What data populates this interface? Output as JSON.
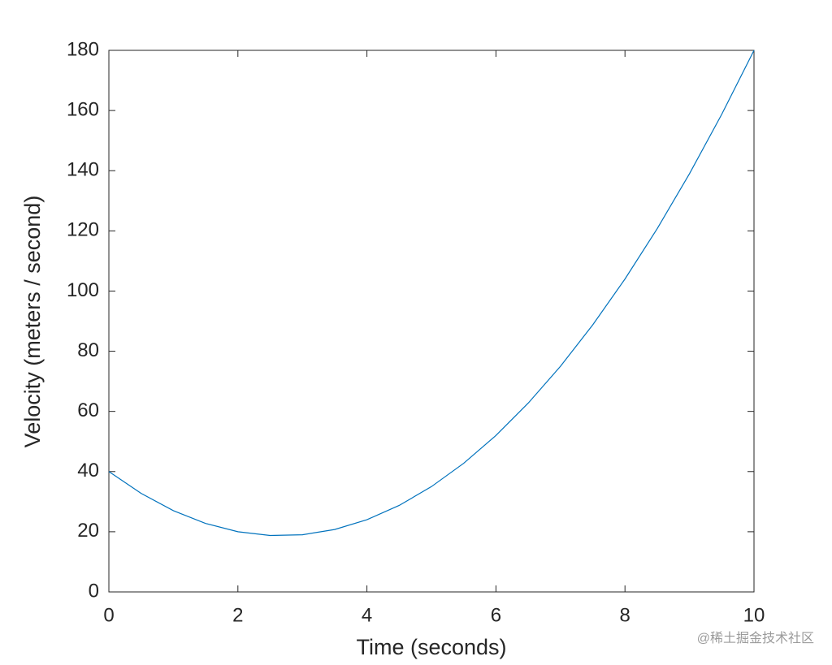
{
  "chart_data": {
    "type": "line",
    "xlabel": "Time (seconds)",
    "ylabel": "Velocity (meters / second)",
    "x": [
      0,
      0.5,
      1,
      1.5,
      2,
      2.5,
      3,
      3.5,
      4,
      4.5,
      5,
      5.5,
      6,
      6.5,
      7,
      7.5,
      8,
      8.5,
      9,
      9.5,
      10
    ],
    "series": [
      {
        "color": "#0072bd",
        "values": [
          40,
          32.75,
          27,
          22.75,
          20,
          18.75,
          19,
          20.75,
          24,
          28.75,
          35,
          42.75,
          52,
          62.75,
          75,
          88.75,
          104,
          120.75,
          139,
          158.75,
          180
        ]
      }
    ],
    "xlim": [
      0,
      10
    ],
    "xticks": [
      0,
      2,
      4,
      6,
      8,
      10
    ],
    "ylim": [
      0,
      180
    ],
    "yticks": [
      0,
      20,
      40,
      60,
      80,
      100,
      120,
      140,
      160,
      180
    ],
    "grid": false
  },
  "watermark": "@稀土掘金技术社区"
}
